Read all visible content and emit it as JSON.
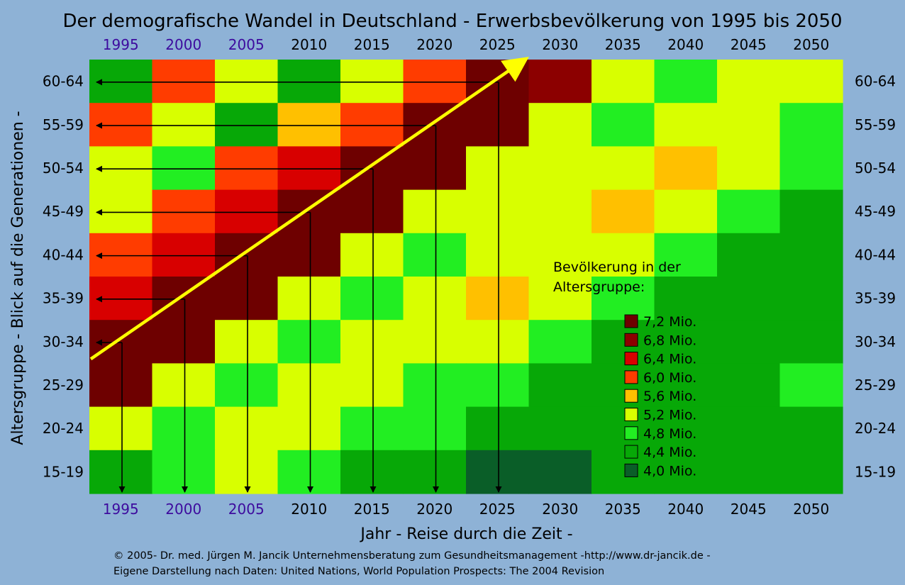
{
  "chart_data": {
    "type": "heatmap",
    "title": "Der demografische Wandel in Deutschland - Erwerbsbevölkerung von 1995 bis 2050",
    "xlabel": "Jahr - Reise durch die Zeit -",
    "ylabel": "Altersgruppe - Blick auf die Generationen -",
    "x_categories": [
      "1995",
      "2000",
      "2005",
      "2010",
      "2015",
      "2020",
      "2025",
      "2030",
      "2035",
      "2040",
      "2045",
      "2050"
    ],
    "y_categories": [
      "60-64",
      "55-59",
      "50-54",
      "45-49",
      "40-44",
      "35-39",
      "30-34",
      "25-29",
      "20-24",
      "15-19"
    ],
    "value_unit": "Mio.",
    "values": [
      [
        4.6,
        5.8,
        5.2,
        4.5,
        5.3,
        6.0,
        7.0,
        6.7,
        5.0,
        4.7,
        5.2,
        5.2
      ],
      [
        6.0,
        5.3,
        4.5,
        5.6,
        6.0,
        7.0,
        7.0,
        5.0,
        4.7,
        5.2,
        5.2,
        4.8
      ],
      [
        5.3,
        4.8,
        5.8,
        6.4,
        7.2,
        7.0,
        5.3,
        5.0,
        5.3,
        5.6,
        5.0,
        4.8
      ],
      [
        5.0,
        5.8,
        6.4,
        7.2,
        7.0,
        5.3,
        5.0,
        5.3,
        5.6,
        5.0,
        4.8,
        4.4
      ],
      [
        5.8,
        6.4,
        7.2,
        7.0,
        5.2,
        4.8,
        5.2,
        5.3,
        5.0,
        4.8,
        4.4,
        4.2
      ],
      [
        6.4,
        7.2,
        7.0,
        5.3,
        4.8,
        5.3,
        5.6,
        5.0,
        4.8,
        4.4,
        4.2,
        4.4
      ],
      [
        7.2,
        7.0,
        5.2,
        4.8,
        5.2,
        5.3,
        5.0,
        4.8,
        4.4,
        4.4,
        4.4,
        4.4
      ],
      [
        7.0,
        5.2,
        4.8,
        5.2,
        5.3,
        4.8,
        4.7,
        4.2,
        4.2,
        4.4,
        4.4,
        4.7
      ],
      [
        5.0,
        4.7,
        5.0,
        5.2,
        4.8,
        4.7,
        4.4,
        4.2,
        4.4,
        4.4,
        4.4,
        4.4
      ],
      [
        4.4,
        4.8,
        5.0,
        4.7,
        4.4,
        4.2,
        4.0,
        4.0,
        4.2,
        4.2,
        4.2,
        4.2
      ]
    ],
    "legend": {
      "title": "Bevölkerung in der Altersgruppe:",
      "items": [
        {
          "label": "7,2 Mio.",
          "value": 7.2,
          "color": "#6e0000"
        },
        {
          "label": "6,8 Mio.",
          "value": 6.8,
          "color": "#8c0000"
        },
        {
          "label": "6,4 Mio.",
          "value": 6.4,
          "color": "#d80000"
        },
        {
          "label": "6,0 Mio.",
          "value": 6.0,
          "color": "#ff3c00"
        },
        {
          "label": "5,6 Mio.",
          "value": 5.6,
          "color": "#ffc000"
        },
        {
          "label": "5,2 Mio.",
          "value": 5.2,
          "color": "#d8ff00"
        },
        {
          "label": "4,8 Mio.",
          "value": 4.8,
          "color": "#22ee22"
        },
        {
          "label": "4,4 Mio.",
          "value": 4.4,
          "color": "#07a807"
        },
        {
          "label": "4,0 Mio.",
          "value": 4.0,
          "color": "#0a5e28"
        }
      ]
    },
    "highlighted_years": [
      "1995",
      "2000",
      "2005"
    ],
    "annotations": [
      "Yellow diagonal arrow from the 30-34 cohort in 1995 to the 60-64 cohort in 2025, with black arrows to the age-group and year axes"
    ]
  },
  "colors": {
    "background": "#8eb2d6",
    "highlighted_year": "#3d0b9e",
    "default_year": "#000000",
    "arrow": "#ffff00"
  },
  "footer": {
    "line1": "© 2005-  Dr. med. Jürgen M. Jancik Unternehmensberatung zum Gesundheitsmanagement -http://www.dr-jancik.de -",
    "line2": "Eigene Darstellung nach Daten: United Nations, World Population Prospects: The 2004 Revision"
  }
}
